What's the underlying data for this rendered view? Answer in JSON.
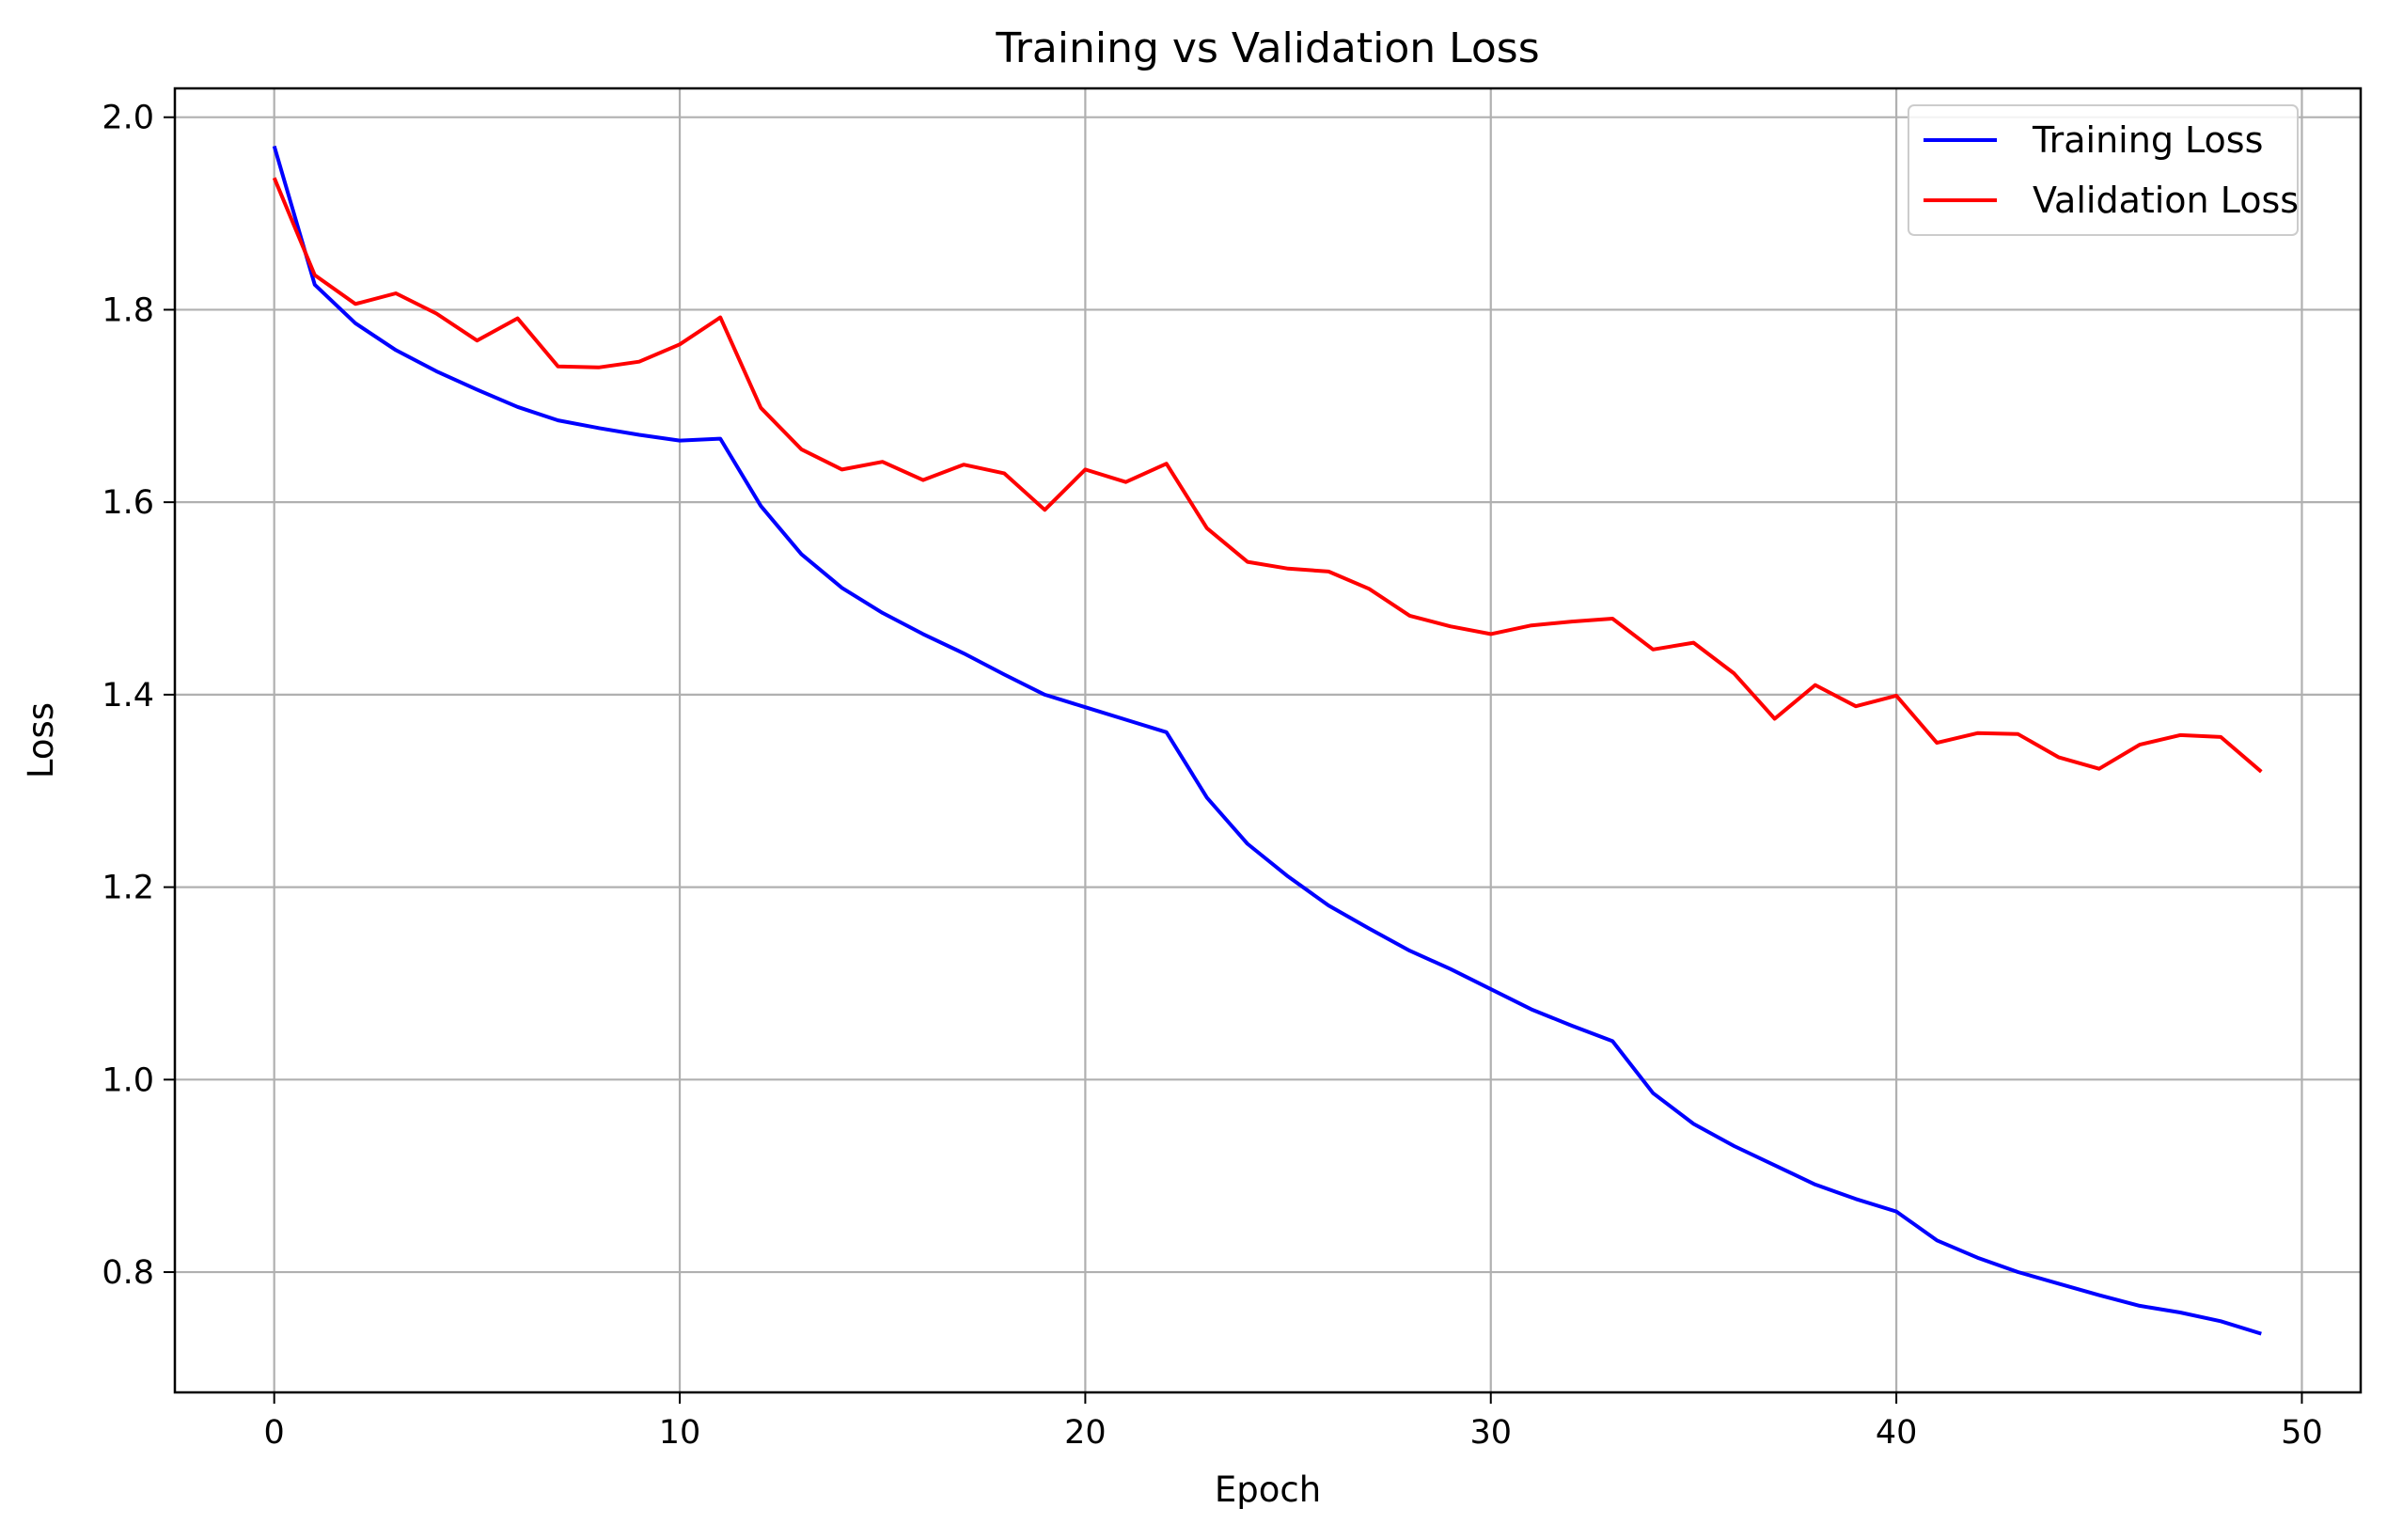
{
  "chart_data": {
    "type": "line",
    "title": "Training vs Validation Loss",
    "xlabel": "Epoch",
    "ylabel": "Loss",
    "xlim": [
      -2.45,
      51.45
    ],
    "ylim": [
      0.675,
      2.03
    ],
    "xticks": [
      0,
      10,
      20,
      30,
      40,
      50
    ],
    "yticks": [
      0.8,
      1.0,
      1.2,
      1.4,
      1.6,
      1.8,
      2.0
    ],
    "xtick_labels": [
      "0",
      "10",
      "20",
      "30",
      "40",
      "50"
    ],
    "ytick_labels": [
      "0.8",
      "1.0",
      "1.2",
      "1.4",
      "1.6",
      "1.8",
      "2.0"
    ],
    "grid": true,
    "legend_position": "top-right",
    "x": [
      0,
      1,
      2,
      3,
      4,
      5,
      6,
      7,
      8,
      9,
      10,
      11,
      12,
      13,
      14,
      15,
      16,
      17,
      18,
      19,
      20,
      21,
      22,
      23,
      24,
      25,
      26,
      27,
      28,
      29,
      30,
      31,
      32,
      33,
      34,
      35,
      36,
      37,
      38,
      39,
      40,
      41,
      42,
      43,
      44,
      45,
      46,
      47,
      48,
      49
    ],
    "series": [
      {
        "name": "Training Loss",
        "color": "#0000ff",
        "values": [
          1.97,
          1.826,
          1.786,
          1.758,
          1.736,
          1.717,
          1.699,
          1.685,
          1.677,
          1.67,
          1.664,
          1.666,
          1.596,
          1.546,
          1.511,
          1.485,
          1.463,
          1.443,
          1.421,
          1.4,
          1.387,
          1.374,
          1.361,
          1.293,
          1.245,
          1.211,
          1.181,
          1.157,
          1.134,
          1.115,
          1.094,
          1.073,
          1.056,
          1.04,
          0.986,
          0.954,
          0.931,
          0.911,
          0.891,
          0.876,
          0.863,
          0.833,
          0.815,
          0.8,
          0.788,
          0.776,
          0.765,
          0.758,
          0.749,
          0.736
        ]
      },
      {
        "name": "Validation Loss",
        "color": "#ff0000",
        "values": [
          1.937,
          1.836,
          1.806,
          1.817,
          1.796,
          1.768,
          1.791,
          1.741,
          1.74,
          1.746,
          1.764,
          1.792,
          1.698,
          1.655,
          1.634,
          1.642,
          1.623,
          1.639,
          1.63,
          1.592,
          1.634,
          1.621,
          1.64,
          1.573,
          1.538,
          1.531,
          1.528,
          1.51,
          1.482,
          1.471,
          1.463,
          1.472,
          1.476,
          1.479,
          1.447,
          1.454,
          1.422,
          1.375,
          1.41,
          1.388,
          1.399,
          1.35,
          1.36,
          1.359,
          1.335,
          1.323,
          1.348,
          1.358,
          1.356,
          1.32
        ]
      }
    ]
  }
}
